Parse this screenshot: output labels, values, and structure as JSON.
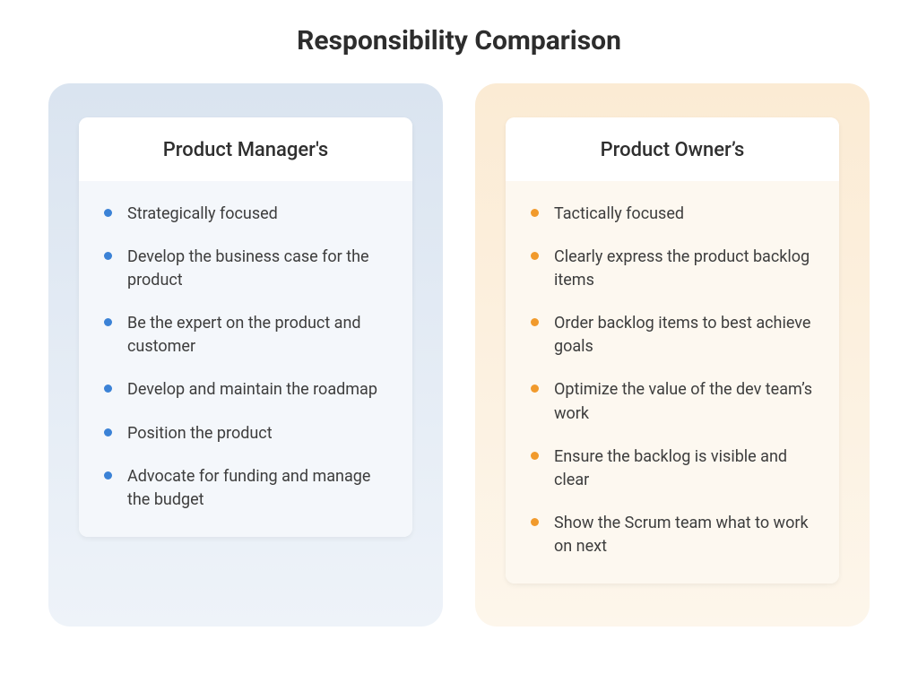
{
  "page": {
    "title": "Responsibility Comparison",
    "title_color": "#2d2d2d",
    "title_fontsize": 30,
    "title_fontweight": 700,
    "background_color": "#ffffff"
  },
  "columns": [
    {
      "id": "product-manager",
      "panel_bg": "#dae4f0",
      "panel_gradient_to": "#eef3f9",
      "body_bg": "#f4f7fb",
      "bullet_color": "#3b82d6",
      "header": "Product Manager's",
      "header_color": "#2f2f2f",
      "header_fontsize": 22,
      "header_fontweight": 500,
      "item_color": "#3d3d3d",
      "item_fontsize": 18,
      "items": [
        "Strategically focused",
        "Develop the business case for the product",
        "Be the expert on the product and customer",
        "Develop and maintain the roadmap",
        "Position the product",
        "Advocate for funding and manage the budget"
      ]
    },
    {
      "id": "product-owner",
      "panel_bg": "#fbebd4",
      "panel_gradient_to": "#fdf6eb",
      "body_bg": "#fdf8f0",
      "bullet_color": "#f19a2c",
      "header": "Product Owner’s",
      "header_color": "#2f2f2f",
      "header_fontsize": 22,
      "header_fontweight": 500,
      "item_color": "#3d3d3d",
      "item_fontsize": 18,
      "items": [
        "Tactically focused",
        "Clearly express the product backlog items",
        "Order backlog items to best achieve goals",
        "Optimize the value of the dev team’s work",
        "Ensure the backlog is visible and clear",
        "Show the Scrum team what to work on next"
      ]
    }
  ]
}
